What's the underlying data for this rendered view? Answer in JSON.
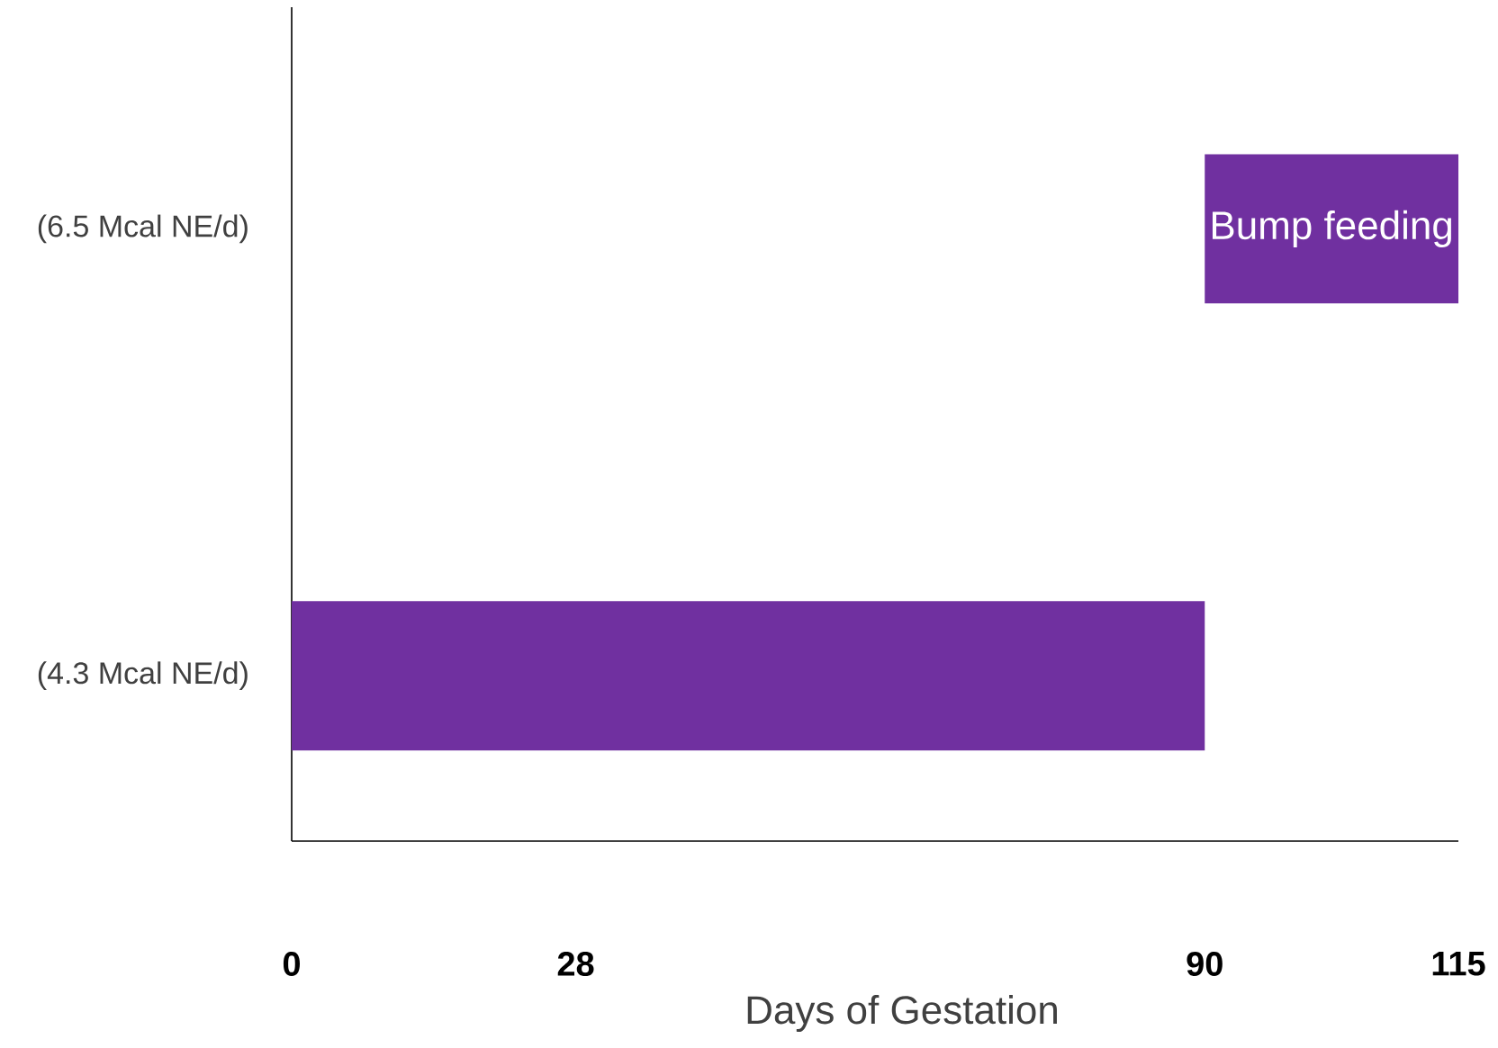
{
  "chart_data": {
    "type": "bar",
    "orientation": "horizontal",
    "categories": [
      "(6.5 Mcal NE/d)",
      "(4.3 Mcal NE/d)"
    ],
    "base": [
      90,
      0
    ],
    "values": [
      25,
      90
    ],
    "color": "#7030a0",
    "xlim": [
      0,
      115
    ],
    "xticks": [
      0,
      28,
      90,
      115
    ],
    "xlabel": "Days of Gestation",
    "grid": false,
    "annotations": [
      "Bump feeding"
    ]
  }
}
